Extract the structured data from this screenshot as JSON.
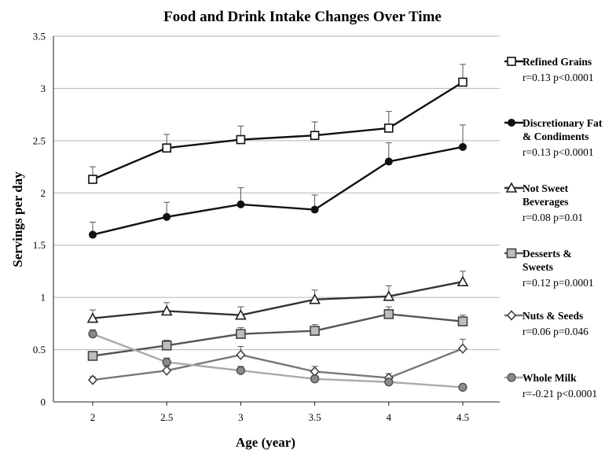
{
  "chart_data": {
    "type": "line",
    "title": "Food and Drink Intake Changes Over Time",
    "xlabel": "Age (year)",
    "ylabel": "Servings per day",
    "x": [
      2,
      2.5,
      3,
      3.5,
      4,
      4.5
    ],
    "x_tick_labels": [
      "2",
      "2.5",
      "3",
      "3.5",
      "4",
      "4.5"
    ],
    "ylim": [
      0,
      3.5
    ],
    "y_ticks": [
      0,
      0.5,
      1,
      1.5,
      2,
      2.5,
      3,
      3.5
    ],
    "y_tick_labels": [
      "0",
      "0.5",
      "1",
      "1.5",
      "2",
      "2.5",
      "3",
      "3.5"
    ],
    "grid": "horizontal",
    "legend_position": "right",
    "series": [
      {
        "name": "Refined Grains",
        "name_lines": [
          "Refined Grains"
        ],
        "stat": "r=0.13  p<0.0001",
        "marker": "square-open",
        "color": "#111111",
        "values": [
          2.13,
          2.43,
          2.51,
          2.55,
          2.62,
          3.06
        ],
        "errors": [
          0.12,
          0.13,
          0.13,
          0.13,
          0.16,
          0.17
        ]
      },
      {
        "name": "Discretionary Fat & Condiments",
        "name_lines": [
          "Discretionary Fat",
          "& Condiments"
        ],
        "stat": "r=0.13  p<0.0001",
        "marker": "circle-filled",
        "color": "#111111",
        "values": [
          1.6,
          1.77,
          1.89,
          1.84,
          2.3,
          2.44
        ],
        "errors": [
          0.12,
          0.14,
          0.16,
          0.14,
          0.18,
          0.21
        ]
      },
      {
        "name": "Not Sweet Beverages",
        "name_lines": [
          "Not Sweet",
          "Beverages"
        ],
        "stat": "r=0.08  p=0.01",
        "marker": "triangle-open",
        "color": "#333333",
        "values": [
          0.8,
          0.87,
          0.83,
          0.98,
          1.01,
          1.15
        ],
        "errors": [
          0.08,
          0.08,
          0.08,
          0.09,
          0.1,
          0.1
        ]
      },
      {
        "name": "Desserts & Sweets",
        "name_lines": [
          "Desserts &",
          "Sweets"
        ],
        "stat": "r=0.12  p=0.0001",
        "marker": "square-gray",
        "color": "#555555",
        "values": [
          0.44,
          0.54,
          0.65,
          0.68,
          0.84,
          0.77
        ],
        "errors": [
          0.04,
          0.05,
          0.06,
          0.06,
          0.07,
          0.06
        ]
      },
      {
        "name": "Nuts & Seeds",
        "name_lines": [
          "Nuts & Seeds"
        ],
        "stat": "r=0.06  p=0.046",
        "marker": "diamond-open",
        "color": "#777777",
        "values": [
          0.21,
          0.3,
          0.45,
          0.29,
          0.23,
          0.51
        ],
        "errors": [
          0.03,
          0.04,
          0.08,
          0.05,
          0.04,
          0.09
        ]
      },
      {
        "name": "Whole Milk",
        "name_lines": [
          "Whole Milk"
        ],
        "stat": "r=-0.21  p<0.0001",
        "marker": "circle-gray",
        "color": "#aaaaaa",
        "values": [
          0.65,
          0.38,
          0.3,
          0.22,
          0.19,
          0.14
        ],
        "errors": [
          0.04,
          0.04,
          0.04,
          0.03,
          0.03,
          0.02
        ]
      }
    ]
  }
}
